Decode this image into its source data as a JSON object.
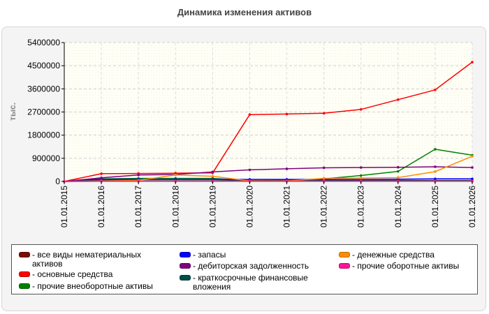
{
  "chart_data": {
    "type": "line",
    "title": "Динамика изменения активов",
    "ylabel": "тыс.",
    "xlabel": "",
    "ylim": [
      0,
      5400000
    ],
    "yticks": [
      "0",
      "900000",
      "1800000",
      "2700000",
      "3600000",
      "4500000",
      "5400000"
    ],
    "categories": [
      "01.01.2015",
      "01.01.2016",
      "01.01.2017",
      "01.01.2018",
      "01.01.2019",
      "01.01.2020",
      "01.01.2021",
      "01.01.2022",
      "01.01.2023",
      "01.01.2024",
      "01.01.2025",
      "01.01.2026"
    ],
    "grid": true,
    "legend_position": "bottom",
    "series": [
      {
        "name": "все виды нематериальных активов",
        "color": "#7a0a0a",
        "values": [
          0,
          5000,
          5000,
          5000,
          5000,
          5000,
          5000,
          5000,
          5000,
          5000,
          5000,
          5000
        ]
      },
      {
        "name": "основные средства",
        "color": "#ff0000",
        "values": [
          0,
          300000,
          310000,
          320000,
          330000,
          2600000,
          2620000,
          2650000,
          2800000,
          3180000,
          3560000,
          4640000
        ]
      },
      {
        "name": "прочие внеоборотные активы",
        "color": "#008000",
        "values": [
          0,
          100000,
          120000,
          120000,
          120000,
          30000,
          50000,
          100000,
          230000,
          390000,
          1250000,
          1020000
        ]
      },
      {
        "name": "запасы",
        "color": "#0000ff",
        "values": [
          0,
          80000,
          80000,
          80000,
          80000,
          80000,
          80000,
          80000,
          80000,
          90000,
          100000,
          100000
        ]
      },
      {
        "name": "дебиторская задолженность",
        "color": "#800080",
        "values": [
          0,
          140000,
          250000,
          270000,
          370000,
          450000,
          490000,
          530000,
          540000,
          550000,
          570000,
          540000
        ]
      },
      {
        "name": "краткосрочные финансовые вложения",
        "color": "#004d4d",
        "values": [
          0,
          50000,
          60000,
          60000,
          60000,
          30000,
          30000,
          40000,
          40000,
          40000,
          40000,
          40000
        ]
      },
      {
        "name": "денежные средства",
        "color": "#ff8c00",
        "values": [
          0,
          20000,
          40000,
          250000,
          200000,
          20000,
          20000,
          120000,
          130000,
          150000,
          380000,
          980000
        ]
      },
      {
        "name": "прочие оборотные активы",
        "color": "#ff1493",
        "values": [
          0,
          10000,
          10000,
          10000,
          10000,
          10000,
          10000,
          10000,
          10000,
          10000,
          10000,
          10000
        ]
      }
    ]
  }
}
